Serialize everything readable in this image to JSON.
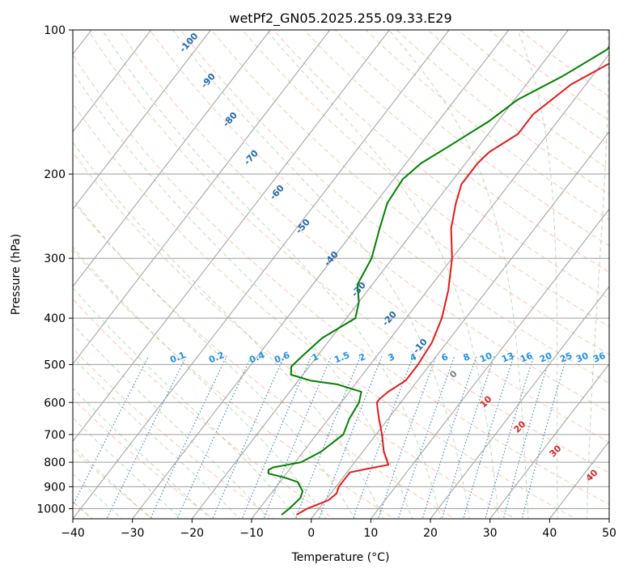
{
  "chart_data": {
    "type": "skew-t",
    "title": "wetPf2_GN05.2025.255.09.33.E29",
    "xlabel": "Temperature (°C)",
    "ylabel": "Pressure (hPa)",
    "xlim": [
      -40,
      50
    ],
    "ylim": [
      1050,
      100
    ],
    "x_ticks": [
      -40,
      -30,
      -20,
      -10,
      0,
      10,
      20,
      30,
      40,
      50
    ],
    "y_ticks": [
      1000,
      900,
      800,
      700,
      600,
      500,
      400,
      300,
      200,
      100
    ],
    "grid": true,
    "series": [
      {
        "quantity": "temperature",
        "color": "#e31a1c",
        "pressure": [
          1030,
          1000,
          960,
          930,
          900,
          860,
          840,
          825,
          810,
          800,
          760,
          700,
          650,
          620,
          600,
          590,
          570,
          540,
          500,
          450,
          400,
          350,
          300,
          260,
          230,
          210,
          190,
          180,
          165,
          150,
          130,
          115,
          100
        ],
        "temperature": [
          -3,
          -2,
          0.5,
          1,
          0.5,
          0.5,
          0.5,
          3,
          6,
          5.5,
          3.5,
          1,
          -1.5,
          -3,
          -4,
          -4,
          -3.5,
          -2,
          -2,
          -2.5,
          -4,
          -6.5,
          -10,
          -14,
          -16.5,
          -18,
          -18,
          -17.5,
          -15,
          -15,
          -12.5,
          -8,
          -3
        ]
      },
      {
        "quantity": "dewpoint",
        "color": "#008000",
        "pressure": [
          1030,
          1000,
          950,
          920,
          880,
          860,
          845,
          830,
          820,
          810,
          800,
          760,
          700,
          650,
          600,
          570,
          550,
          540,
          525,
          505,
          480,
          440,
          400,
          370,
          340,
          300,
          260,
          230,
          205,
          190,
          175,
          155,
          140,
          125,
          110,
          100
        ],
        "dewpoint": [
          -5.5,
          -5,
          -4.5,
          -5,
          -7,
          -10,
          -13,
          -13.5,
          -13,
          -11,
          -9,
          -7,
          -5.5,
          -6.5,
          -7,
          -8,
          -13,
          -18,
          -22,
          -23,
          -22.5,
          -21.5,
          -18.5,
          -20,
          -22.5,
          -23.5,
          -26,
          -28,
          -28.5,
          -27.5,
          -25,
          -21.5,
          -19.5,
          -15,
          -11,
          -10.5
        ]
      }
    ],
    "reference_lines": {
      "dry_adiabats_theta_K": [
        -100,
        -90,
        -80,
        -70,
        -60,
        -50,
        -40,
        -30,
        -20,
        -10
      ],
      "mixing_ratio_g_kg": [
        "0.1",
        "0.2",
        "0.4",
        "0.6",
        "1",
        "1.5",
        "2",
        "3",
        "4",
        "6",
        "8",
        "10",
        "13",
        "16",
        "20",
        "25",
        "30",
        "36"
      ],
      "moist_adiabat_labels": [
        "0",
        "10",
        "20",
        "30",
        "40"
      ]
    },
    "colors": {
      "isotherm": "#9e9e9e",
      "dry_adiabat": "#fc8d62",
      "moist_adiabat": "#7fbf7b",
      "mixing_ratio": "#1f77b4"
    }
  }
}
